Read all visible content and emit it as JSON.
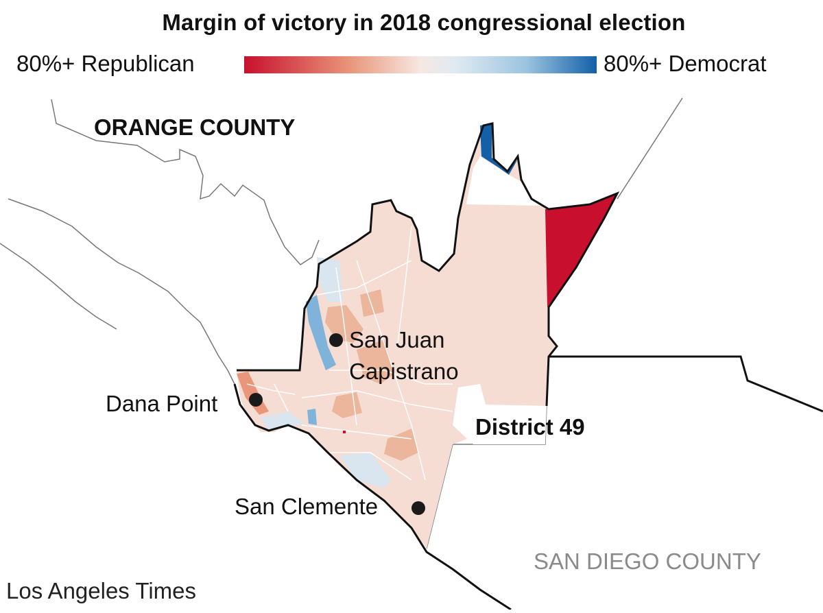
{
  "title": "Margin of victory in 2018 congressional election",
  "legend": {
    "left_label": "80%+ Republican",
    "right_label": "80%+ Democrat",
    "gradient_colors": [
      "#c8102e",
      "#e9967a",
      "#f7e8e2",
      "#dfeaf2",
      "#9cc4e0",
      "#1360a8"
    ]
  },
  "labels": {
    "orange_county": "ORANGE COUNTY",
    "san_diego_county": "SAN DIEGO COUNTY",
    "district": "District 49",
    "san_juan_capistrano_line1": "San Juan",
    "san_juan_capistrano_line2": "Capistrano",
    "dana_point": "Dana Point",
    "san_clemente": "San Clemente"
  },
  "credit": "Los Angeles Times",
  "colors": {
    "strong_republican": "#c8102e",
    "strong_democrat": "#1360a8",
    "lean_republican": "#f5ddd3",
    "moderate_republican": "#ebb69c",
    "lean_democrat": "#d9e6ef",
    "moderate_democrat": "#7fb3d9",
    "boundary": "#111111",
    "county_line": "#777777"
  }
}
